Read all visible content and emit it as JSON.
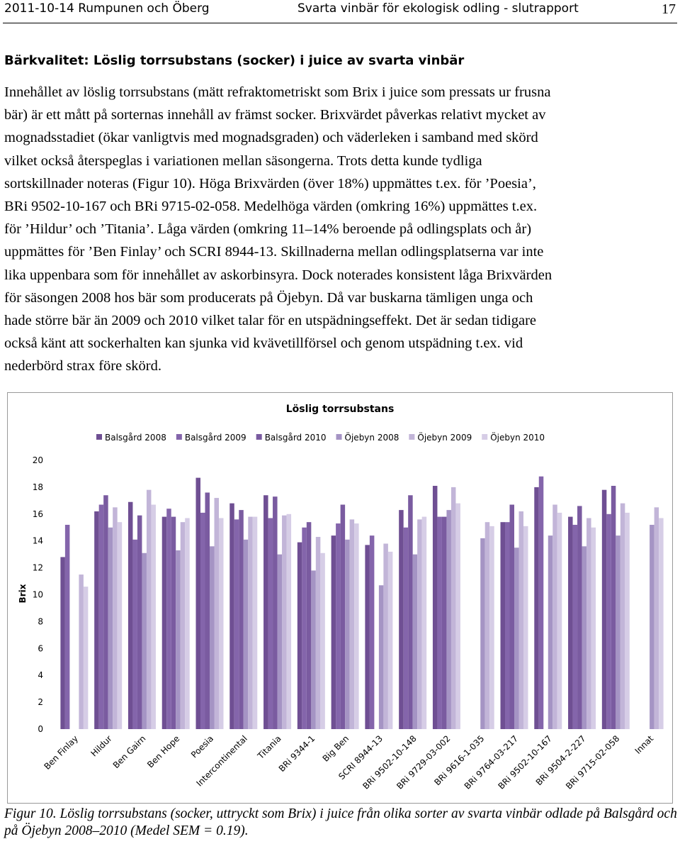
{
  "header": {
    "left": "2011-10-14 Rumpunen och Öberg",
    "center": "Svarta vinbär för ekologisk odling - slutrapport",
    "page": "17"
  },
  "section_title": "Bärkvalitet: Löslig torrsubstans (socker) i juice av svarta vinbär",
  "paragraph": {
    "lines": [
      "Innehållet av löslig torrsubstans (mätt refraktometriskt som Brix i juice som pressats ur frusna",
      "bär) är ett mått på sorternas innehåll av främst socker. Brixvärdet påverkas relativt mycket av",
      "mognadsstadiet (ökar vanligtvis med mognadsgraden) och väderleken i samband med skörd",
      "vilket också återspeglas i variationen mellan säsongerna. Trots detta kunde tydliga",
      "sortskillnader noteras (Figur 10). Höga Brixvärden (över 18%) uppmättes t.ex. för ’Poesia’,",
      "BRi 9502-10-167 och BRi 9715-02-058. Medelhöga värden (omkring 16%) uppmättes t.ex.",
      "för ’Hildur’ och ’Titania’. Låga värden (omkring 11–14% beroende på odlingsplats och år)",
      "uppmättes för ’Ben Finlay’ och SCRI 8944-13. Skillnaderna mellan odlingsplatserna var inte",
      "lika uppenbara som för innehållet av askorbinsyra. Dock noterades konsistent låga Brixvärden",
      "för säsongen 2008 hos bär som producerats på Öjebyn. Då var buskarna tämligen unga och",
      "hade större bär än 2009 och 2010 vilket talar för en utspädningseffekt. Det är sedan tidigare",
      "också känt att sockerhalten kan sjunka vid kvävetillförsel och genom utspädning t.ex. vid",
      "nederbörd strax före skörd."
    ]
  },
  "chart_data": {
    "type": "bar",
    "title": "Löslig torrsubstans",
    "y_label": "Brix",
    "categories": [
      "Ben Finlay",
      "Hildur",
      "Ben Gairn",
      "Ben Hope",
      "Poesia",
      "Intercontinental",
      "Titania",
      "BRi 9344-1",
      "Big Ben",
      "SCRI 8944-13",
      "BRi 9502-10-148",
      "BRi 9729-03-002",
      "BRi 9616-1-035",
      "BRi 9764-03-217",
      "BRi 9502-10-167",
      "BRi 9504-2-227",
      "BRi 9715-02-058",
      "Innat"
    ],
    "series": [
      {
        "name": "Balsgård 2008",
        "color": "#6f4f93",
        "values": [
          12.8,
          16.2,
          16.9,
          15.8,
          18.7,
          16.8,
          17.4,
          13.9,
          14.4,
          13.7,
          16.3,
          18.1,
          null,
          15.4,
          18.0,
          15.8,
          17.8,
          null
        ]
      },
      {
        "name": "Balsgård 2009",
        "color": "#8465ab",
        "values": [
          15.2,
          16.7,
          14.1,
          16.4,
          16.1,
          15.6,
          15.7,
          15.0,
          15.3,
          14.4,
          15.0,
          15.8,
          null,
          15.4,
          18.8,
          15.2,
          16.0,
          null
        ]
      },
      {
        "name": "Balsgård 2010",
        "color": "#7a5ba0",
        "values": [
          null,
          17.4,
          15.9,
          15.8,
          17.6,
          16.3,
          17.3,
          15.4,
          16.7,
          null,
          17.4,
          15.8,
          null,
          16.7,
          null,
          16.6,
          18.1,
          null
        ]
      },
      {
        "name": "Öjebyn 2008",
        "color": "#a594c4",
        "values": [
          null,
          15.0,
          13.1,
          13.3,
          13.6,
          14.1,
          13.0,
          11.8,
          14.1,
          10.7,
          13.0,
          16.3,
          14.2,
          13.5,
          14.4,
          13.6,
          14.4,
          15.2
        ]
      },
      {
        "name": "Öjebyn 2009",
        "color": "#c2b5d8",
        "values": [
          11.5,
          16.5,
          17.8,
          15.4,
          17.2,
          15.8,
          15.9,
          14.3,
          15.6,
          13.8,
          15.6,
          18.0,
          15.4,
          16.2,
          16.7,
          15.7,
          16.8,
          16.5
        ]
      },
      {
        "name": "Öjebyn 2010",
        "color": "#d6cde6",
        "values": [
          10.6,
          15.4,
          16.7,
          15.7,
          15.7,
          15.8,
          16.0,
          13.1,
          15.3,
          13.2,
          15.8,
          16.8,
          15.1,
          15.1,
          16.1,
          15.0,
          16.1,
          15.7
        ]
      }
    ],
    "ylim": [
      0,
      20
    ],
    "yticks": [
      0,
      2,
      4,
      6,
      8,
      10,
      12,
      14,
      16,
      18,
      20
    ],
    "grid": false
  },
  "caption": "Figur 10. Löslig torrsubstans (socker, uttryckt som Brix) i juice från olika sorter av svarta vinbär odlade på Balsgård och på Öjebyn 2008–2010 (Medel SEM = 0.19)."
}
